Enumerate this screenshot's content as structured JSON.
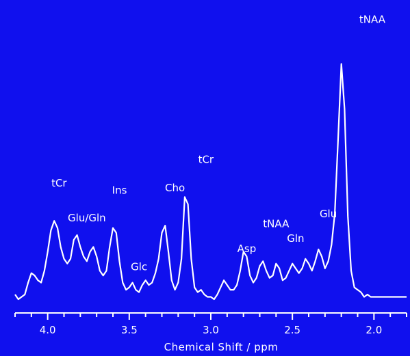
{
  "chart_data": {
    "type": "line",
    "title": "",
    "xlabel": "Chemical Shift / ppm",
    "ylabel": "",
    "x_reversed": true,
    "xlim": [
      4.2,
      1.8
    ],
    "ylim": [
      0,
      1
    ],
    "x_ticks": [
      4.0,
      3.5,
      3.0,
      2.5,
      2.0
    ],
    "x_tick_labels": [
      "4.0",
      "3.5",
      "3.0",
      "2.5",
      "2.0"
    ],
    "grid": false,
    "colors": {
      "background": "#1010ee",
      "line": "#ffffff"
    },
    "series": [
      {
        "x": [
          4.2,
          4.18,
          4.16,
          4.14,
          4.12,
          4.1,
          4.08,
          4.06,
          4.04,
          4.02,
          4.0,
          3.98,
          3.96,
          3.94,
          3.92,
          3.9,
          3.88,
          3.86,
          3.84,
          3.82,
          3.8,
          3.78,
          3.76,
          3.74,
          3.72,
          3.7,
          3.68,
          3.66,
          3.64,
          3.62,
          3.6,
          3.58,
          3.56,
          3.54,
          3.52,
          3.5,
          3.48,
          3.46,
          3.44,
          3.42,
          3.4,
          3.38,
          3.36,
          3.34,
          3.32,
          3.3,
          3.28,
          3.26,
          3.24,
          3.22,
          3.2,
          3.18,
          3.16,
          3.14,
          3.12,
          3.1,
          3.08,
          3.06,
          3.04,
          3.02,
          3.0,
          2.98,
          2.96,
          2.94,
          2.92,
          2.9,
          2.88,
          2.86,
          2.84,
          2.82,
          2.8,
          2.78,
          2.76,
          2.74,
          2.72,
          2.7,
          2.68,
          2.66,
          2.64,
          2.62,
          2.6,
          2.58,
          2.56,
          2.54,
          2.52,
          2.5,
          2.48,
          2.46,
          2.44,
          2.42,
          2.4,
          2.38,
          2.36,
          2.34,
          2.32,
          2.3,
          2.28,
          2.26,
          2.24,
          2.22,
          2.2,
          2.18,
          2.16,
          2.14,
          2.12,
          2.1,
          2.08,
          2.06,
          2.04,
          2.02,
          2.0,
          1.98,
          1.96,
          1.94,
          1.92,
          1.9,
          1.88,
          1.86,
          1.84,
          1.82,
          1.8
        ],
        "y": [
          0.02,
          0.0,
          0.01,
          0.02,
          0.07,
          0.11,
          0.1,
          0.08,
          0.07,
          0.12,
          0.2,
          0.29,
          0.33,
          0.3,
          0.22,
          0.17,
          0.15,
          0.17,
          0.25,
          0.27,
          0.22,
          0.18,
          0.16,
          0.2,
          0.22,
          0.18,
          0.12,
          0.1,
          0.12,
          0.22,
          0.3,
          0.28,
          0.16,
          0.07,
          0.04,
          0.05,
          0.07,
          0.04,
          0.03,
          0.06,
          0.08,
          0.06,
          0.07,
          0.11,
          0.17,
          0.28,
          0.31,
          0.2,
          0.08,
          0.04,
          0.07,
          0.17,
          0.43,
          0.4,
          0.17,
          0.05,
          0.03,
          0.04,
          0.02,
          0.01,
          0.01,
          0.0,
          0.02,
          0.05,
          0.08,
          0.06,
          0.04,
          0.04,
          0.06,
          0.12,
          0.2,
          0.18,
          0.1,
          0.07,
          0.09,
          0.14,
          0.16,
          0.12,
          0.09,
          0.1,
          0.15,
          0.13,
          0.08,
          0.09,
          0.12,
          0.15,
          0.13,
          0.11,
          0.13,
          0.17,
          0.15,
          0.12,
          0.16,
          0.21,
          0.18,
          0.13,
          0.16,
          0.23,
          0.36,
          0.67,
          0.99,
          0.8,
          0.35,
          0.12,
          0.05,
          0.04,
          0.03,
          0.01,
          0.02,
          0.01,
          0.01,
          0.01,
          0.01,
          0.01,
          0.01,
          0.01,
          0.01,
          0.01,
          0.01,
          0.01,
          0.01
        ]
      }
    ],
    "annotations": [
      {
        "text": "tNAA",
        "x": 2.01,
        "y": 0.99
      },
      {
        "text": "tCr",
        "x": 3.03,
        "y": 0.43
      },
      {
        "text": "tCr",
        "x": 3.93,
        "y": 0.33
      },
      {
        "text": "Ins",
        "x": 3.56,
        "y": 0.3
      },
      {
        "text": "Cho",
        "x": 3.22,
        "y": 0.31
      },
      {
        "text": "Glu/Gln",
        "x": 3.76,
        "y": 0.27
      },
      {
        "text": "Glc",
        "x": 3.44,
        "y": 0.07
      },
      {
        "text": "Asp",
        "x": 2.78,
        "y": 0.06
      },
      {
        "text": "tNAA",
        "x": 2.6,
        "y": 0.16
      },
      {
        "text": "Gln",
        "x": 2.48,
        "y": 0.15
      },
      {
        "text": "Glu",
        "x": 2.28,
        "y": 0.23
      }
    ]
  }
}
